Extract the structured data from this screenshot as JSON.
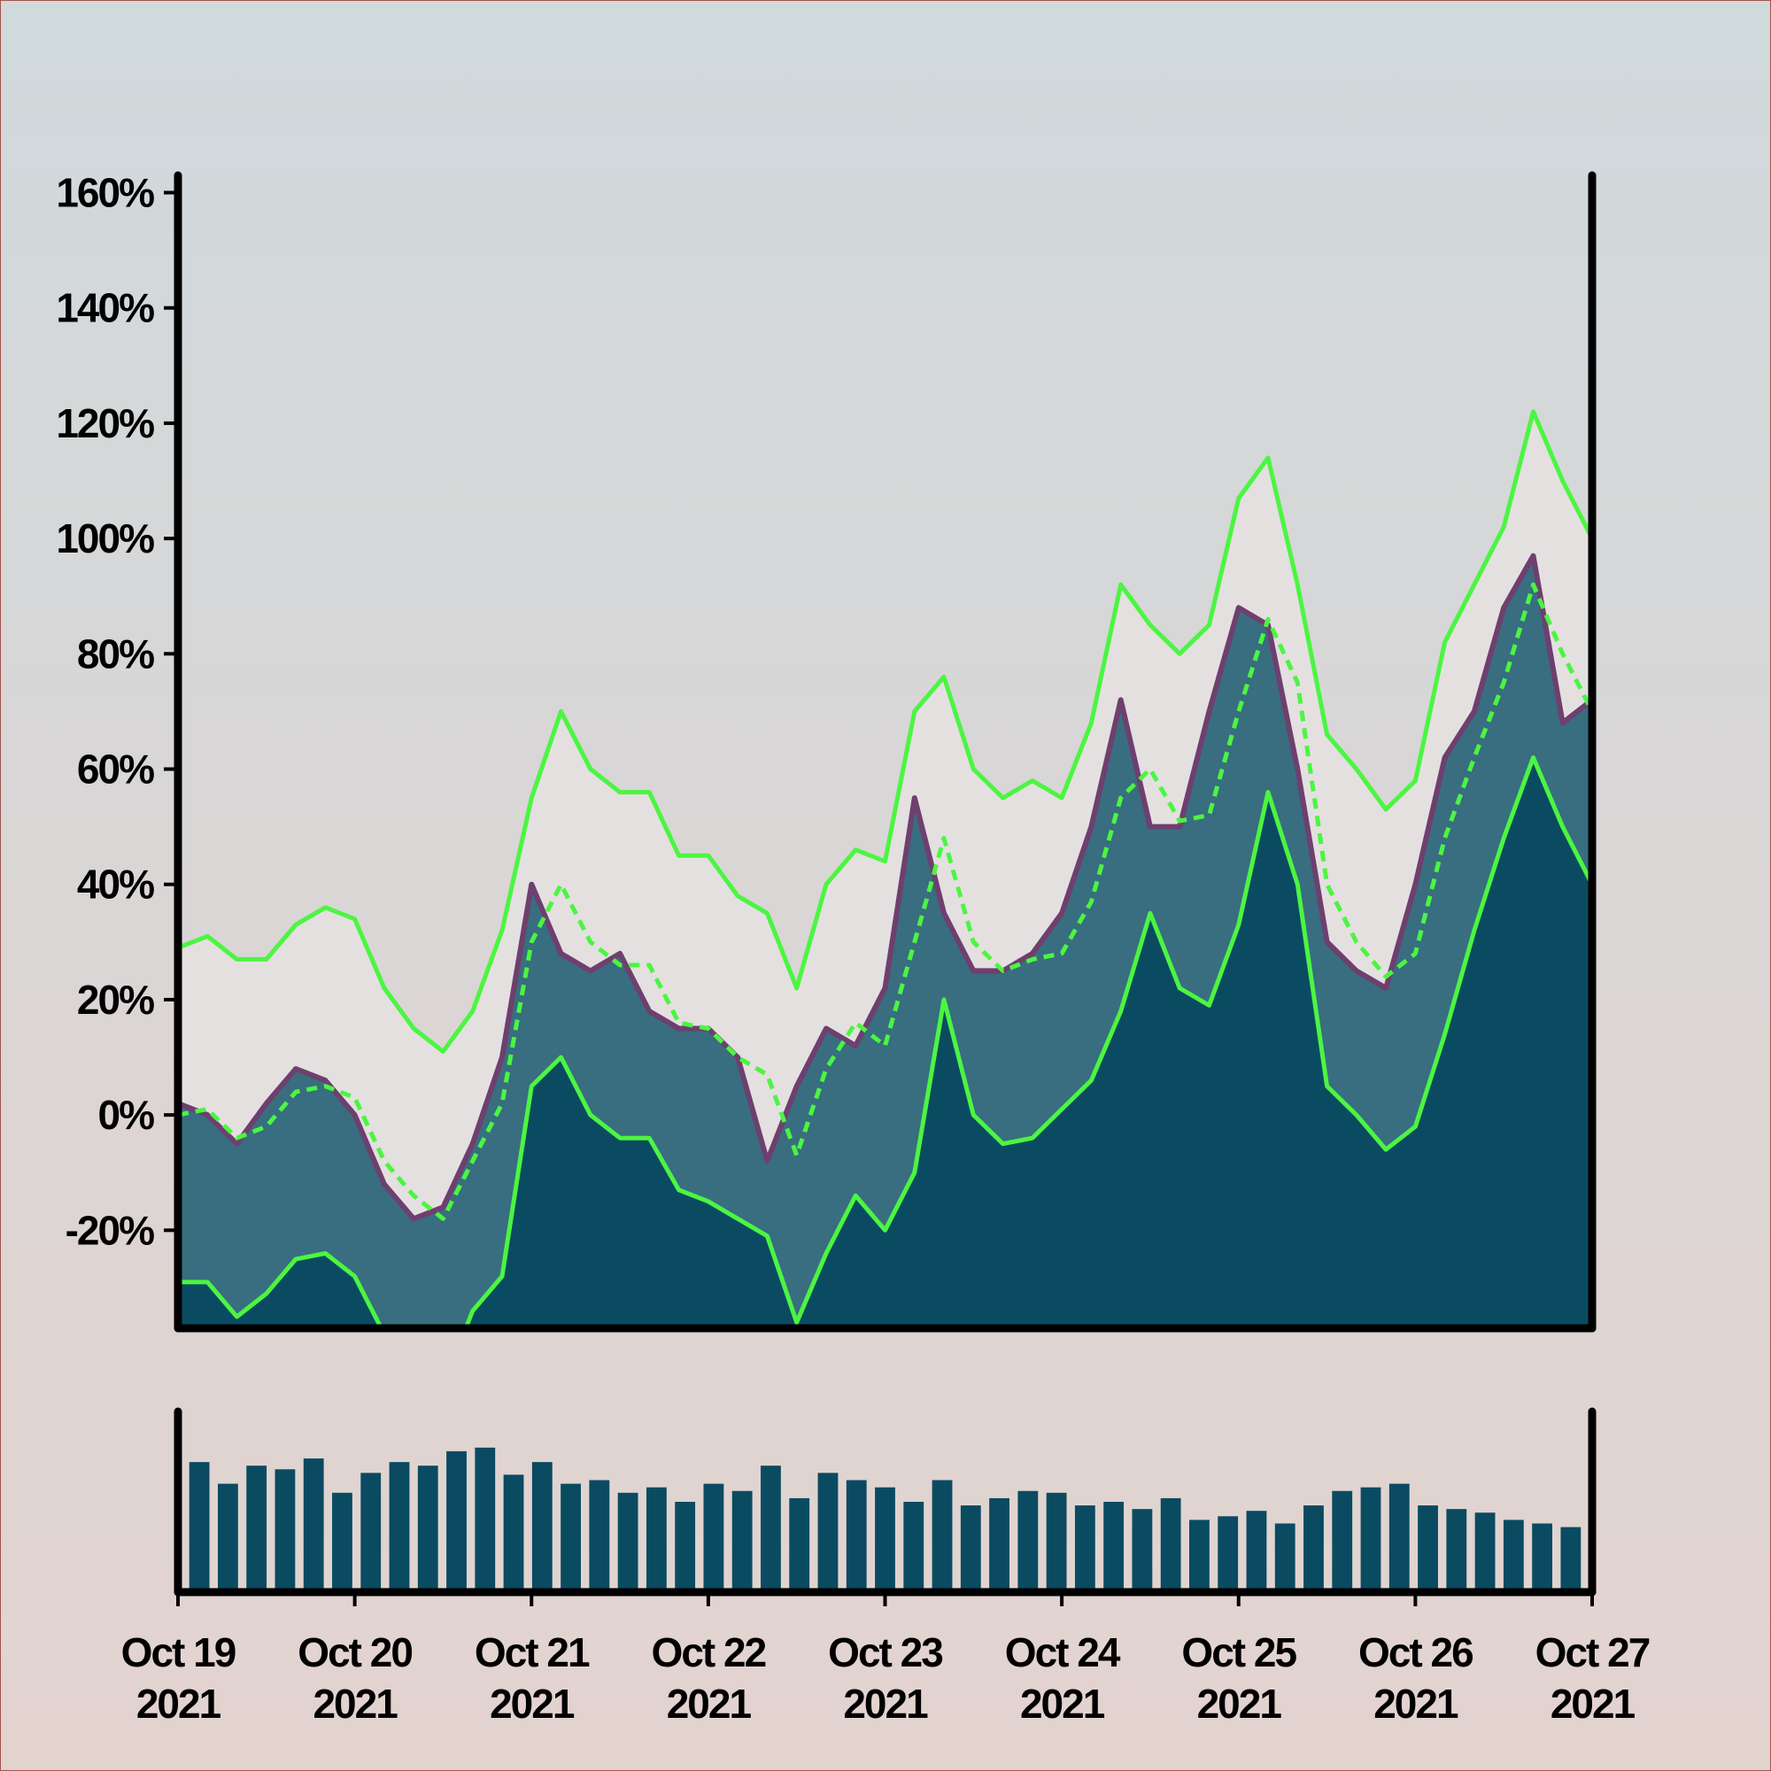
{
  "chart_data": {
    "type": "line",
    "x": [
      0,
      4,
      8,
      12,
      16,
      20,
      24,
      28,
      32,
      36,
      40,
      44,
      48,
      52,
      56,
      60,
      64,
      68,
      72,
      76,
      80,
      84,
      88,
      92,
      96,
      100,
      104,
      108,
      112,
      116,
      120,
      124,
      128,
      132,
      136,
      140,
      144,
      148,
      152,
      156,
      160,
      164,
      168,
      172,
      176,
      180,
      184,
      188,
      192
    ],
    "xlim": [
      0,
      192
    ],
    "xticks": [
      {
        "value": 0,
        "label": "Oct 19",
        "sublabel": "2021"
      },
      {
        "value": 24,
        "label": "Oct 20",
        "sublabel": "2021"
      },
      {
        "value": 48,
        "label": "Oct 21",
        "sublabel": "2021"
      },
      {
        "value": 72,
        "label": "Oct 22",
        "sublabel": "2021"
      },
      {
        "value": 96,
        "label": "Oct 23",
        "sublabel": "2021"
      },
      {
        "value": 120,
        "label": "Oct 24",
        "sublabel": "2021"
      },
      {
        "value": 144,
        "label": "Oct 25",
        "sublabel": "2021"
      },
      {
        "value": 168,
        "label": "Oct 26",
        "sublabel": "2021"
      },
      {
        "value": 192,
        "label": "Oct 27",
        "sublabel": "2021"
      }
    ],
    "ylim": [
      -37,
      163
    ],
    "yticks": [
      {
        "value": -20,
        "label": "-20%"
      },
      {
        "value": 0,
        "label": "0%"
      },
      {
        "value": 20,
        "label": "20%"
      },
      {
        "value": 40,
        "label": "40%"
      },
      {
        "value": 60,
        "label": "60%"
      },
      {
        "value": 80,
        "label": "80%"
      },
      {
        "value": 100,
        "label": "100%"
      },
      {
        "value": 120,
        "label": "120%"
      },
      {
        "value": 140,
        "label": "140%"
      },
      {
        "value": 160,
        "label": "160%"
      }
    ],
    "price": {
      "color": "#386e7f",
      "line_color": "#6e3f6f",
      "values": [
        2,
        0,
        -5,
        2,
        8,
        6,
        0,
        -12,
        -18,
        -16,
        -5,
        10,
        40,
        28,
        25,
        28,
        18,
        15,
        15,
        10,
        -8,
        5,
        15,
        12,
        22,
        55,
        35,
        25,
        25,
        28,
        35,
        50,
        72,
        50,
        50,
        70,
        88,
        85,
        60,
        30,
        25,
        22,
        40,
        62,
        70,
        88,
        97,
        68,
        72
      ]
    },
    "bands": {
      "color": "#4cf542",
      "fill": "#e4e0e0",
      "lower_fill": "#0a4b61",
      "upper": [
        29,
        31,
        27,
        27,
        33,
        36,
        34,
        22,
        15,
        11,
        18,
        32,
        55,
        70,
        60,
        56,
        56,
        45,
        45,
        38,
        35,
        22,
        40,
        46,
        44,
        70,
        76,
        60,
        55,
        58,
        55,
        68,
        92,
        85,
        80,
        85,
        107,
        114,
        92,
        66,
        60,
        53,
        58,
        82,
        92,
        102,
        122,
        110,
        100
      ],
      "middle": [
        0,
        1,
        -4,
        -2,
        4,
        5,
        3,
        -8,
        -14,
        -18,
        -8,
        2,
        30,
        40,
        30,
        26,
        26,
        16,
        15,
        10,
        7,
        -7,
        8,
        16,
        12,
        30,
        48,
        30,
        25,
        27,
        28,
        37,
        55,
        60,
        51,
        52,
        70,
        86,
        75,
        40,
        30,
        24,
        28,
        48,
        62,
        75,
        92,
        80,
        70
      ],
      "lower": [
        -29,
        -29,
        -35,
        -31,
        -25,
        -24,
        -28,
        -38,
        -43,
        -47,
        -34,
        -28,
        5,
        10,
        0,
        -4,
        -4,
        -13,
        -15,
        -18,
        -21,
        -36,
        -24,
        -14,
        -20,
        -10,
        20,
        0,
        -5,
        -4,
        1,
        6,
        18,
        35,
        22,
        19,
        33,
        56,
        40,
        5,
        0,
        -6,
        -2,
        14,
        32,
        48,
        62,
        50,
        40
      ]
    },
    "volume": {
      "color": "#0a4b61",
      "ylim": [
        0,
        100
      ],
      "values": [
        72,
        60,
        70,
        68,
        74,
        55,
        66,
        72,
        70,
        78,
        80,
        65,
        72,
        60,
        62,
        55,
        58,
        50,
        60,
        56,
        70,
        52,
        66,
        62,
        58,
        50,
        62,
        48,
        52,
        56,
        55,
        48,
        50,
        46,
        52,
        40,
        42,
        45,
        38,
        48,
        56,
        58,
        60,
        48,
        46,
        44,
        40,
        38,
        36
      ]
    }
  }
}
